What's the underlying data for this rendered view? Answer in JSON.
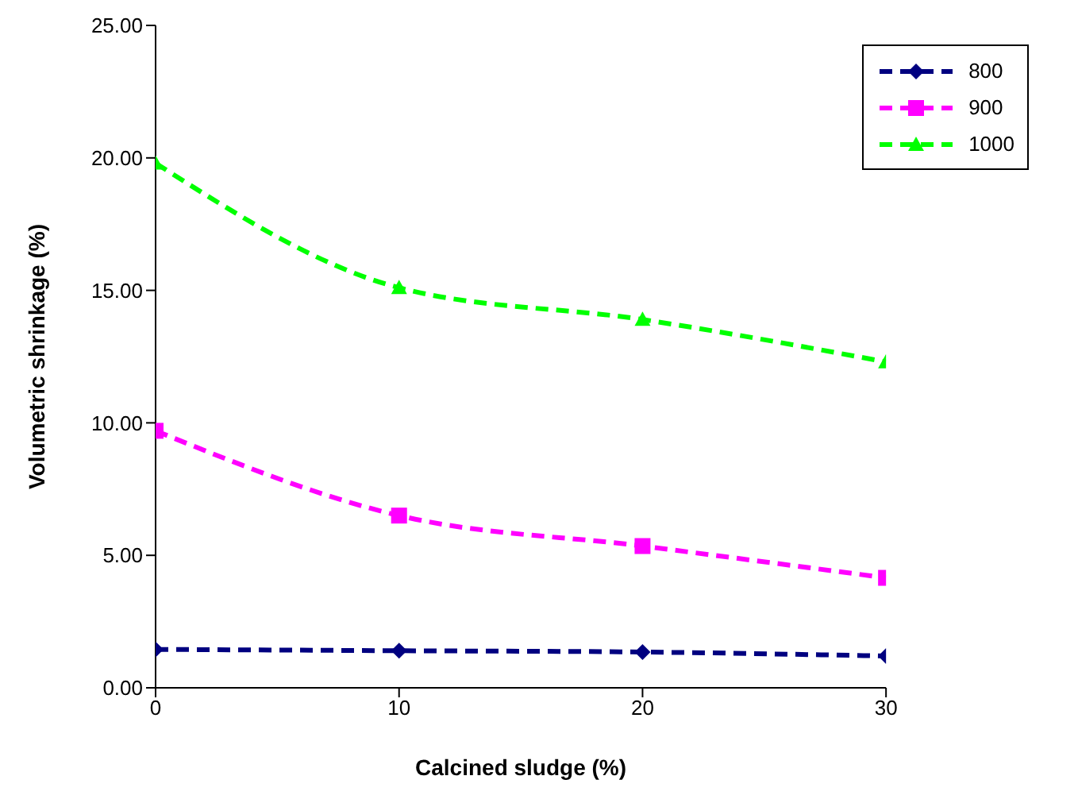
{
  "chart_data": {
    "type": "line",
    "xlabel": "Calcined sludge (%)",
    "ylabel": "Volumetric shrinkage (%)",
    "x": [
      0,
      10,
      20,
      30
    ],
    "series": [
      {
        "name": "800",
        "color": "#000080",
        "marker": "diamond",
        "values": [
          1.45,
          1.4,
          1.35,
          1.2
        ]
      },
      {
        "name": "900",
        "color": "#ff00ff",
        "marker": "square",
        "values": [
          9.7,
          6.5,
          5.35,
          4.15
        ]
      },
      {
        "name": "1000",
        "color": "#00ff00",
        "marker": "triangle",
        "values": [
          19.8,
          15.1,
          13.9,
          12.3
        ]
      }
    ],
    "xlim": [
      0,
      30
    ],
    "xticks": [
      0,
      10,
      20,
      30
    ],
    "ylim": [
      0,
      25
    ],
    "yticks": [
      {
        "value": 0,
        "label": "0.00"
      },
      {
        "value": 5,
        "label": "5.00"
      },
      {
        "value": 10,
        "label": "10.00"
      },
      {
        "value": 15,
        "label": "15.00"
      },
      {
        "value": 20,
        "label": "20.00"
      },
      {
        "value": 25,
        "label": "25.00"
      }
    ],
    "grid": false,
    "legend": "top right",
    "line_style": "dashed"
  }
}
